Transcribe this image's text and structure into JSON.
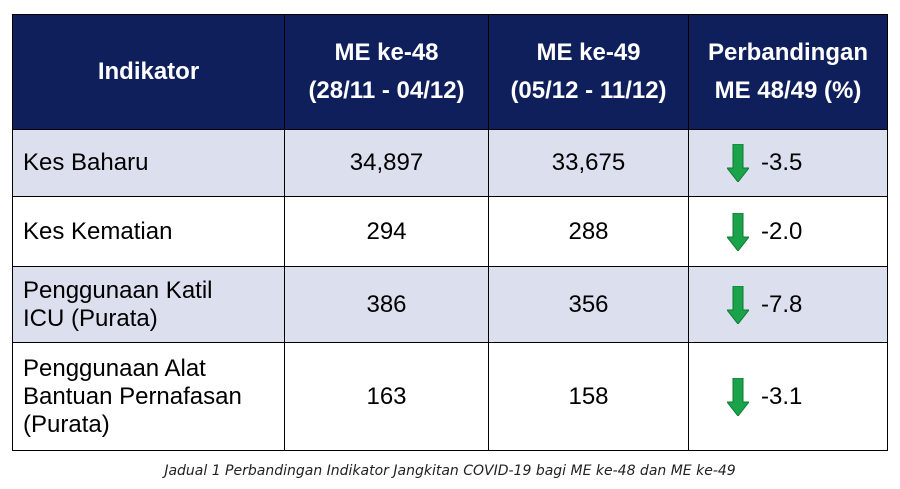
{
  "table": {
    "headers": {
      "indicator": "Indikator",
      "me48_line1": "ME ke-48",
      "me48_line2": "(28/11 - 04/12)",
      "me49_line1": "ME ke-49",
      "me49_line2": "(05/12 - 11/12)",
      "cmp_line1": "Perbandingan",
      "cmp_line2": "ME 48/49 (%)"
    },
    "rows": [
      {
        "indicator_lines": [
          "Kes Baharu"
        ],
        "me48": "34,897",
        "me49": "33,675",
        "change": "-3.5",
        "trend": "down"
      },
      {
        "indicator_lines": [
          "Kes Kematian"
        ],
        "me48": "294",
        "me49": "288",
        "change": "-2.0",
        "trend": "down"
      },
      {
        "indicator_lines": [
          "Penggunaan Katil",
          "ICU (Purata)"
        ],
        "me48": "386",
        "me49": "356",
        "change": "-7.8",
        "trend": "down"
      },
      {
        "indicator_lines": [
          "Penggunaan Alat",
          "Bantuan Pernafasan",
          "(Purata)"
        ],
        "me48": "163",
        "me49": "158",
        "change": "-3.1",
        "trend": "down"
      }
    ],
    "colors": {
      "header_bg": "#0f1f5c",
      "row_shade": "#dcdfee",
      "arrow_green": "#1aa34a"
    }
  },
  "caption": "Jadual 1 Perbandingan Indikator Jangkitan COVID-19 bagi ME ke-48 dan ME ke-49"
}
